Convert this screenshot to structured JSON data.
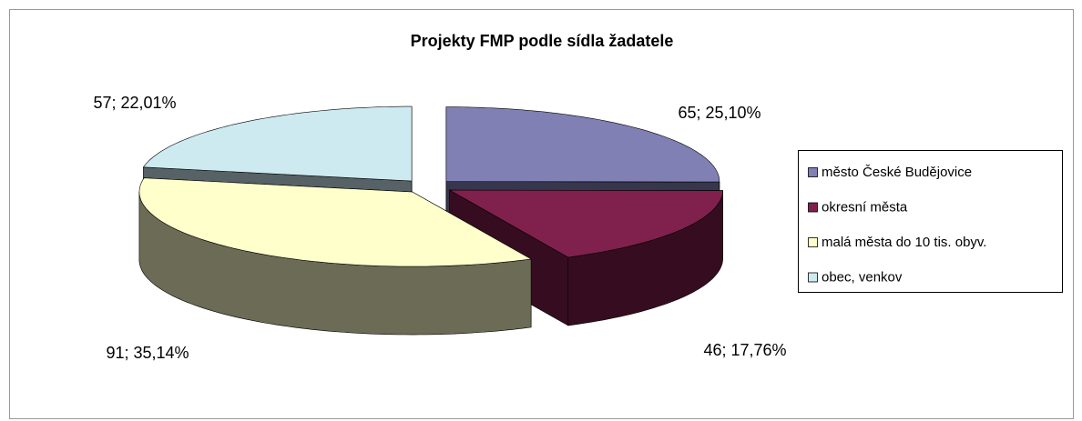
{
  "chart_data": {
    "type": "pie3d",
    "title": "Projekty FMP podle sídla žadatele",
    "categories": [
      "město České Budějovice",
      "okresní města",
      "malá města do 10 tis. obyv.",
      "obec, venkov"
    ],
    "values": [
      65,
      46,
      91,
      57
    ],
    "value_labels": [
      "65; 25,10%",
      "46; 17,76%",
      "91; 35,14%",
      "57; 22,01%"
    ],
    "colors": [
      "#8080b4",
      "#80204c",
      "#ffffcc",
      "#cceaf0"
    ],
    "legend": "right"
  }
}
